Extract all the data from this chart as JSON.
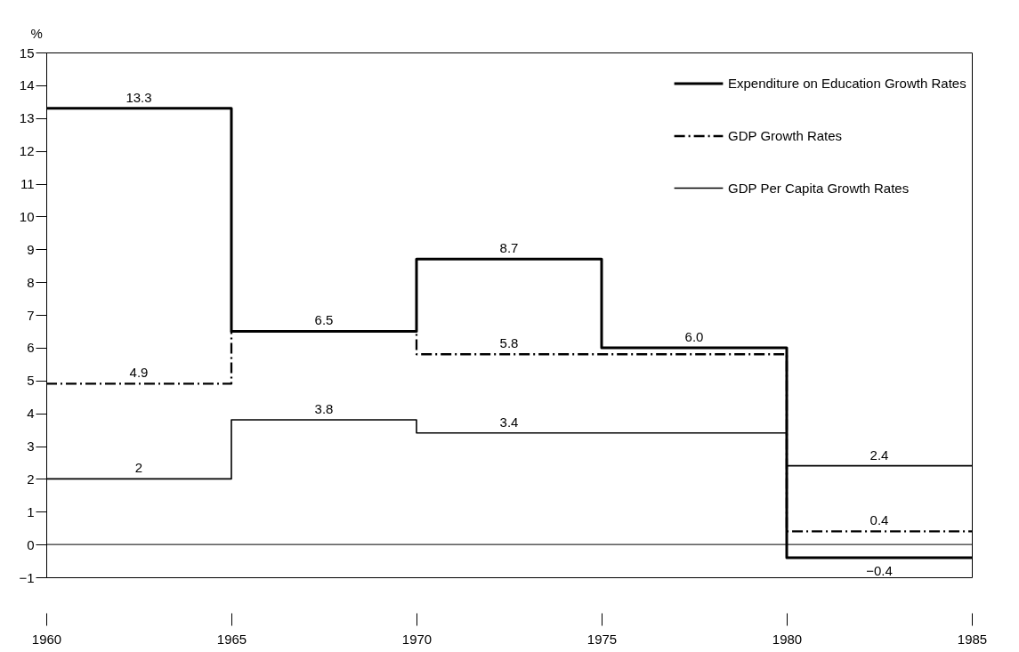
{
  "chart_data": {
    "type": "step",
    "ylabel": "%",
    "x": [
      1960,
      1962.5,
      1967.5,
      1972.5,
      1977.5,
      1982.5,
      1985
    ],
    "series": [
      {
        "name": "Expenditure on Education Growth Rates",
        "color": "#000000",
        "line_style": "solid",
        "values": [
          13.3,
          13.3,
          6.5,
          8.7,
          6.0,
          -0.4,
          -0.4
        ],
        "value_labels": [
          null,
          "13.3",
          "6.5",
          "8.7",
          "6.0",
          "−0.4",
          null
        ]
      },
      {
        "name": "GDP Growth Rates",
        "color": "#000000",
        "line_style": "dashed",
        "values": [
          4.9,
          4.9,
          6.5,
          5.8,
          5.8,
          0.4,
          0.4
        ],
        "value_labels": [
          null,
          "4.9",
          null,
          "5.8",
          null,
          "0.4",
          null
        ]
      },
      {
        "name": "GDP Per Capita Growth Rates",
        "color": "#000000",
        "line_style": "solid",
        "values": [
          2,
          2,
          3.8,
          3.4,
          3.4,
          2.4,
          2.4
        ],
        "value_labels": [
          null,
          "2",
          "3.8",
          "3.4",
          null,
          "2.4",
          null
        ]
      }
    ],
    "xlim": [
      1960,
      1985
    ],
    "xticks": [
      1960,
      1965,
      1970,
      1975,
      1980,
      1985
    ],
    "ylim": [
      -1,
      15
    ],
    "yticks": [
      -1,
      0,
      1,
      2,
      3,
      4,
      5,
      6,
      7,
      8,
      9,
      10,
      11,
      12,
      13,
      14,
      15
    ],
    "ref_lines": [
      {
        "axis": "y",
        "value": 0,
        "label": null
      }
    ],
    "legend": "top right",
    "grid": false
  }
}
